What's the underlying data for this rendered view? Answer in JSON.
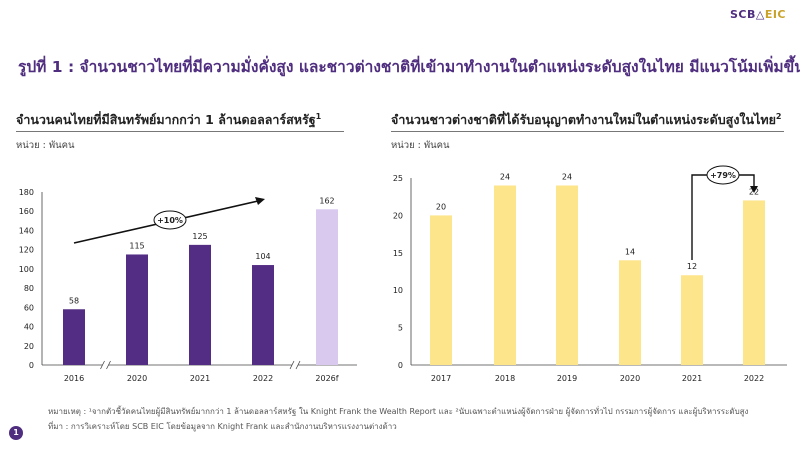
{
  "brand": {
    "scb": "SCB",
    "eic": "EIC"
  },
  "main_title": "รูปที่ 1 : จำนวนชาวไทยที่มีความมั่งคั่งสูง และชาวต่างชาติที่เข้ามาทำงานในตำแหน่งระดับสูงในไทย มีแนวโน้มเพิ่มขึ้น",
  "colors": {
    "brand_purple": "#4f2d7f",
    "bar_purple": "#532c83",
    "bar_light_purple": "#d9c9ef",
    "bar_yellow": "#fde58c"
  },
  "chart_data": [
    {
      "type": "bar",
      "title": "จำนวนคนไทยที่มีสินทรัพย์มากกว่า 1 ล้านดอลลาร์สหรัฐ",
      "title_sup": "1",
      "unit": "หน่วย : พันคน",
      "categories": [
        "2016",
        "2020",
        "2021",
        "2022",
        "2026f"
      ],
      "values": [
        58,
        115,
        125,
        104,
        162
      ],
      "forecast_index": 4,
      "axis_break_after": [
        0,
        3
      ],
      "ylim": [
        0,
        180
      ],
      "yticks": [
        0,
        20,
        40,
        60,
        80,
        100,
        120,
        140,
        160,
        180
      ],
      "annotation": "+10%",
      "grid": false
    },
    {
      "type": "bar",
      "title": "จำนวนชาวต่างชาติที่ได้รับอนุญาตทำงานใหม่ในตำแหน่งระดับสูงในไทย",
      "title_sup": "2",
      "unit": "หน่วย : พันคน",
      "categories": [
        "2017",
        "2018",
        "2019",
        "2020",
        "2021",
        "2022"
      ],
      "values": [
        20,
        24,
        24,
        14,
        12,
        22
      ],
      "ylim": [
        0,
        25
      ],
      "yticks": [
        0,
        5,
        10,
        15,
        20,
        25
      ],
      "annotation": "+79%",
      "grid": false
    }
  ],
  "footnote": "หมายเหตุ : ¹จากตัวชี้วัดคนไทยผู้มีสินทรัพย์มากกว่า 1 ล้านดอลลาร์สหรัฐ ใน Knight Frank the Wealth Report และ ²นับเฉพาะตำแหน่งผู้จัดการฝ่าย ผู้จัดการทั่วไป กรรมการผู้จัดการ และผู้บริหารระดับสูง",
  "source": "ที่มา : การวิเคราะห์โดย SCB EIC โดยข้อมูลจาก Knight Frank และสำนักงานบริหารแรงงานต่างด้าว",
  "page_number": "1"
}
